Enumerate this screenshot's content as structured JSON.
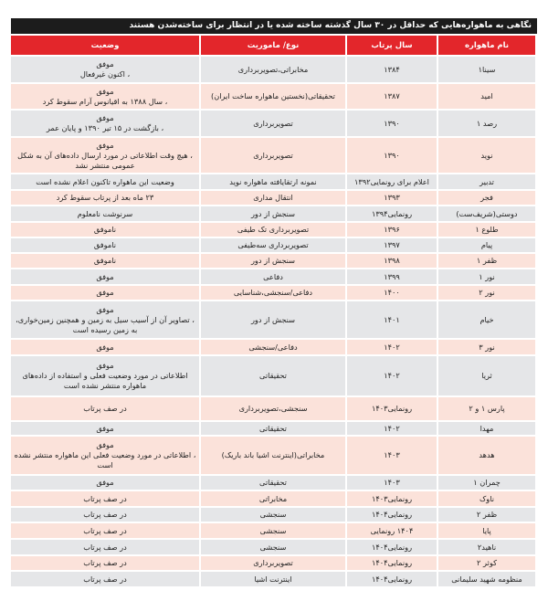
{
  "title": "نگاهی به ماهواره‌هایی که حداقل در ۳۰ سال گذشته ساخته شده یا در انتظار برای ساخته‌شدن هستند",
  "headers": {
    "name": "نام ماهواره",
    "year": "سال پرتاب",
    "type": "نوع/ ماموریت",
    "status": "وضعیت"
  },
  "colors": {
    "header": "#e3262b",
    "title_bar": "#1c1c1c",
    "row_gray": "#e5e6e8",
    "row_pink": "#fbe2da"
  },
  "rows": [
    {
      "name": "سینا۱",
      "year": "۱۳۸۴",
      "type": "مخابراتی،تصویربرداری",
      "status": "موفق\n، اکنون غیرفعال"
    },
    {
      "name": "امید",
      "year": "۱۳۸۷",
      "type": "تحقیقاتی(نخستین ماهواره ساخت ایران)",
      "status": "موفق\n، سال ۱۳۸۸ به اقیانوس آرام سقوط کرد"
    },
    {
      "name": "رصد ۱",
      "year": "۱۳۹۰",
      "type": "تصویربرداری",
      "status": "موفق\n، بازگشت در ۱۵ تیر ۱۳۹۰ و پایان عمر"
    },
    {
      "name": "نوید",
      "year": "۱۳۹۰",
      "type": "تصویربرداری",
      "status": "موفق\n، هیچ وقت اطلاعاتی در مورد ارسال داده‌های آن به شکل\nعمومی منتشر نشد"
    },
    {
      "name": "تدبیر",
      "year": "اعلام برای رونمایی۱۳۹۲",
      "type": "نمونه ارتقایافته ماهواره نوید",
      "status": "وضعیت این ماهواره تاکنون اعلام نشده است"
    },
    {
      "name": "فجر",
      "year": "۱۳۹۳",
      "type": "انتقال مداری",
      "status": "۲۳ ماه بعد از پرتاب سقوط کرد"
    },
    {
      "name": "دوستی(شریف‌ست)",
      "year": "رونمایی۱۳۹۴",
      "type": "سنجش از دور",
      "status": "سرنوشت نامعلوم"
    },
    {
      "name": "طلوع ۱",
      "year": "۱۳۹۶",
      "type": "تصویربرداری تک طیفی",
      "status": "ناموفق"
    },
    {
      "name": "پیام",
      "year": "۱۳۹۷",
      "type": "تصویربرداری سه‌طیفی",
      "status": "ناموفق"
    },
    {
      "name": "ظفر ۱",
      "year": "۱۳۹۸",
      "type": "سنجش از دور",
      "status": "ناموفق"
    },
    {
      "name": "نور ۱",
      "year": "۱۳۹۹",
      "type": "دفاعی",
      "status": "موفق"
    },
    {
      "name": "نور ۲",
      "year": "۱۴۰۰",
      "type": "دفاعی/سنجشی،شناسایی",
      "status": "موفق"
    },
    {
      "name": "خیام",
      "year": "۱۴۰۱",
      "type": "سنجش از دور",
      "status": "موفق\n، تصاویر آن از آسیب سیل به زمین و همچنین زمین‌خواری،\nبه زمین رسیده است"
    },
    {
      "name": "نور ۳",
      "year": "۱۴۰۲",
      "type": "دفاعی/سنجشی",
      "status": "موفق"
    },
    {
      "name": "ثریا",
      "year": "۱۴۰۲",
      "type": "تحقیقاتی",
      "status": "موفق\nاطلاعاتی در مورد وضعیت فعلی و استفاده از داده‌های\nماهواره منتشر نشده است"
    },
    {
      "name": "پارس ۱ و ۲",
      "year": "رونمایی۱۴۰۳",
      "type": "سنجشی،تصویربرداری",
      "status": "در صف پرتاب\n "
    },
    {
      "name": "مهدا",
      "year": "۱۴۰۲",
      "type": "تحقیقاتی",
      "status": "موفق"
    },
    {
      "name": "هدهد",
      "year": "۱۴۰۳",
      "type": "مخابراتی(اینترنت اشیا باند باریک)",
      "status": "موفق\n، اطلاعاتی در مورد وضعیت فعلی این ماهواره منتشر نشده\nاست"
    },
    {
      "name": "چمران ۱",
      "year": "۱۴۰۳",
      "type": "تحقیقاتی",
      "status": "موفق"
    },
    {
      "name": "ناوک",
      "year": "رونمایی۱۴۰۳",
      "type": "مخابراتی",
      "status": "در صف پرتاب"
    },
    {
      "name": "ظفر ۲",
      "year": "رونمایی۱۴۰۴",
      "type": "سنجشی",
      "status": "در صف پرتاب"
    },
    {
      "name": "پایا",
      "year": "۱۴۰۴ رونمایی",
      "type": "سنجشی",
      "status": "در صف پرتاب"
    },
    {
      "name": "ناهید۲",
      "year": "رونمایی۱۴۰۴",
      "type": "سنجشی",
      "status": "در صف پرتاب"
    },
    {
      "name": "کوثر ۲",
      "year": "رونمایی۱۴۰۴",
      "type": "تصویربرداری",
      "status": "در صف پرتاب"
    },
    {
      "name": "منظومه شهید سلیمانی",
      "year": "رونمایی۱۴۰۴",
      "type": "اینترنت اشیا",
      "status": "در صف پرتاب"
    }
  ]
}
